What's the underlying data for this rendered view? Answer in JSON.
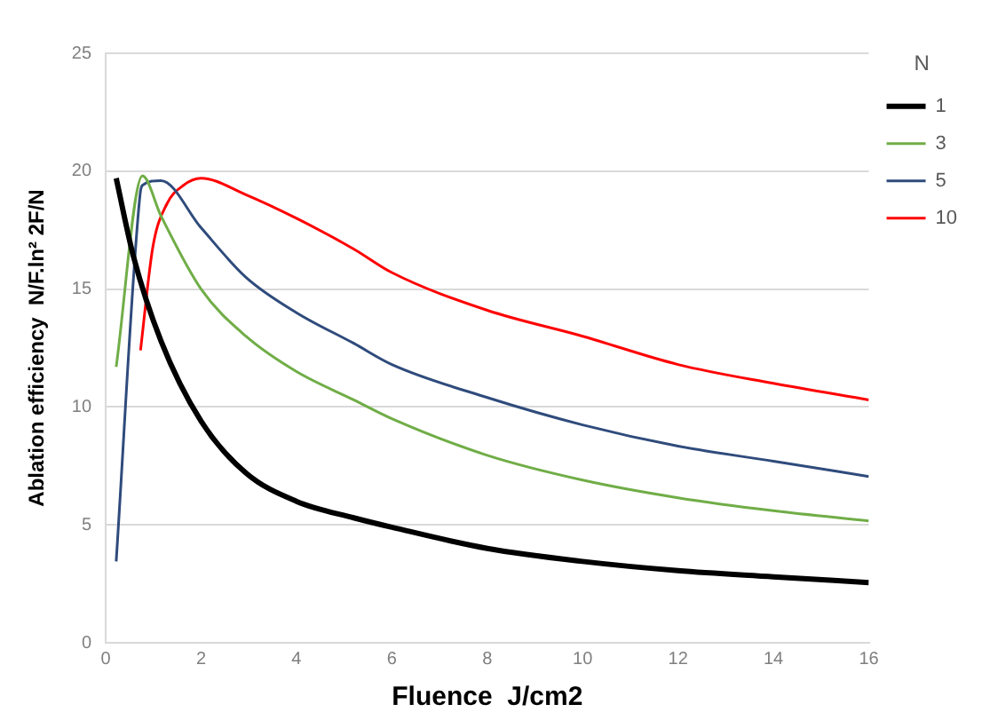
{
  "chart_data": {
    "type": "line",
    "xlabel": "Fluence  J/cm2",
    "ylabel": "Ablation efficiency  N/F.ln² 2F/N",
    "legend_title": "N",
    "legend": "right",
    "grid": "y",
    "marker": "none",
    "line_style": "solid",
    "xlim": [
      0,
      16
    ],
    "xticks": [
      0,
      2,
      4,
      6,
      8,
      10,
      12,
      14,
      16
    ],
    "ylim": [
      0,
      25
    ],
    "yticks": [
      0,
      5,
      10,
      15,
      20,
      25
    ],
    "series": [
      {
        "name": "1",
        "color": "#000000",
        "x": [
          0.22,
          0.58,
          1.16,
          2,
          2.94,
          4,
          5.2,
          6,
          8,
          10,
          12,
          14,
          16
        ],
        "values": [
          19.7,
          16.4,
          12.8,
          9.4,
          7.2,
          6,
          5.3,
          4.9,
          4,
          3.45,
          3.06,
          2.8,
          2.55
        ]
      },
      {
        "name": "3",
        "color": "#70ad47",
        "x": [
          0.22,
          0.77,
          1.16,
          2,
          2.94,
          4,
          5.2,
          6,
          8,
          10,
          12,
          14,
          16
        ],
        "values": [
          11.7,
          19.8,
          18.1,
          15,
          13,
          11.5,
          10.3,
          9.5,
          7.95,
          6.9,
          6.15,
          5.6,
          5.17
        ]
      },
      {
        "name": "5",
        "color": "#2f4b7c",
        "x": [
          0.22,
          0.72,
          0.77,
          1.16,
          2,
          2.94,
          4,
          5.2,
          6,
          8,
          10,
          12,
          14,
          16
        ],
        "values": [
          3.45,
          19,
          19.4,
          19.6,
          17.6,
          15.5,
          14,
          12.7,
          11.8,
          10.4,
          9.24,
          8.34,
          7.7,
          7.05
        ]
      },
      {
        "name": "10",
        "color": "#ff0000",
        "x": [
          0.73,
          0.99,
          1.28,
          1.63,
          2,
          2.94,
          4,
          5.2,
          6,
          8,
          10,
          12,
          14,
          16
        ],
        "values": [
          12.4,
          16.8,
          18.6,
          19.4,
          19.7,
          19,
          18,
          16.7,
          15.7,
          14.1,
          13,
          11.8,
          11,
          10.3
        ]
      }
    ]
  }
}
